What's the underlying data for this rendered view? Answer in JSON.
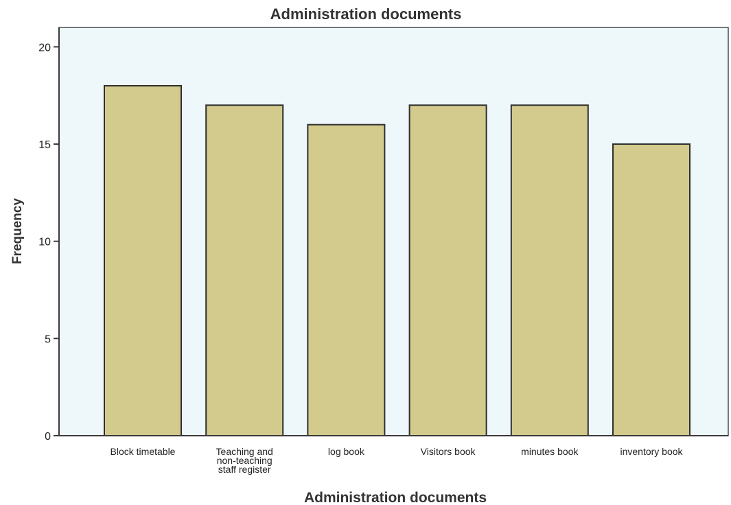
{
  "chart_data": {
    "type": "bar",
    "title": "Administration documents",
    "xlabel": "Administration documents",
    "ylabel": "Frequency",
    "categories": [
      [
        "Block timetable"
      ],
      [
        "Teaching and",
        "non-teaching",
        "staff register"
      ],
      [
        "log book"
      ],
      [
        "Visitors book"
      ],
      [
        "minutes book"
      ],
      [
        "inventory book"
      ]
    ],
    "values": [
      18,
      17,
      16,
      17,
      17,
      15
    ],
    "ylim": [
      0,
      21
    ],
    "yticks": [
      0,
      5,
      10,
      15,
      20
    ],
    "grid": false,
    "legend": "none",
    "colors": {
      "plot_background": "#eef7fa",
      "bar_fill": "#d3cb8d",
      "bar_stroke": "#2f2f2f",
      "axis": "#3a3a3a",
      "frame": "#4a4a4a"
    }
  }
}
